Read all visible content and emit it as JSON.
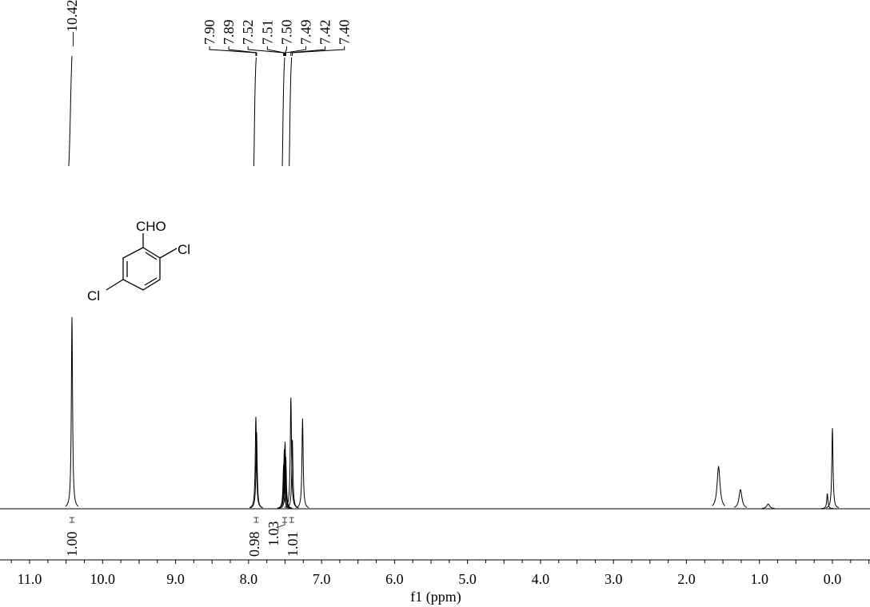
{
  "chart_data": {
    "type": "line",
    "xlabel": "f1 (ppm)",
    "ylabel": "",
    "xlim": [
      11.4,
      -0.5
    ],
    "x_reversed": true,
    "grid": false,
    "x_ticks": [
      "11.0",
      "10.0",
      "9.0",
      "8.0",
      "7.0",
      "6.0",
      "5.0",
      "4.0",
      "3.0",
      "2.0",
      "1.0",
      "0.0"
    ],
    "peaks": [
      {
        "ppm": 10.42,
        "height": 1.0
      },
      {
        "ppm": 7.9,
        "height": 0.48
      },
      {
        "ppm": 7.89,
        "height": 0.4
      },
      {
        "ppm": 7.52,
        "height": 0.23
      },
      {
        "ppm": 7.51,
        "height": 0.31
      },
      {
        "ppm": 7.5,
        "height": 0.35
      },
      {
        "ppm": 7.49,
        "height": 0.27
      },
      {
        "ppm": 7.42,
        "height": 0.58
      },
      {
        "ppm": 7.4,
        "height": 0.36
      },
      {
        "ppm": 7.26,
        "height": 0.47
      },
      {
        "ppm": 1.56,
        "height": 0.22
      },
      {
        "ppm": 1.26,
        "height": 0.1
      },
      {
        "ppm": 0.88,
        "height": 0.025
      },
      {
        "ppm": 0.07,
        "height": 0.08
      },
      {
        "ppm": 0.0,
        "height": 0.42
      }
    ],
    "peak_labels": [
      "10.42",
      "7.90",
      "7.89",
      "7.52",
      "7.51",
      "7.50",
      "7.49",
      "7.42",
      "7.40"
    ],
    "integrals": [
      {
        "ppm": 10.42,
        "value": "1.00"
      },
      {
        "ppm": 7.895,
        "value": "0.98"
      },
      {
        "ppm": 7.505,
        "value": "1.03"
      },
      {
        "ppm": 7.41,
        "value": "1.01"
      }
    ]
  },
  "structure": {
    "substituent_top": "CHO",
    "substituent_right": "Cl",
    "substituent_left": "Cl"
  }
}
